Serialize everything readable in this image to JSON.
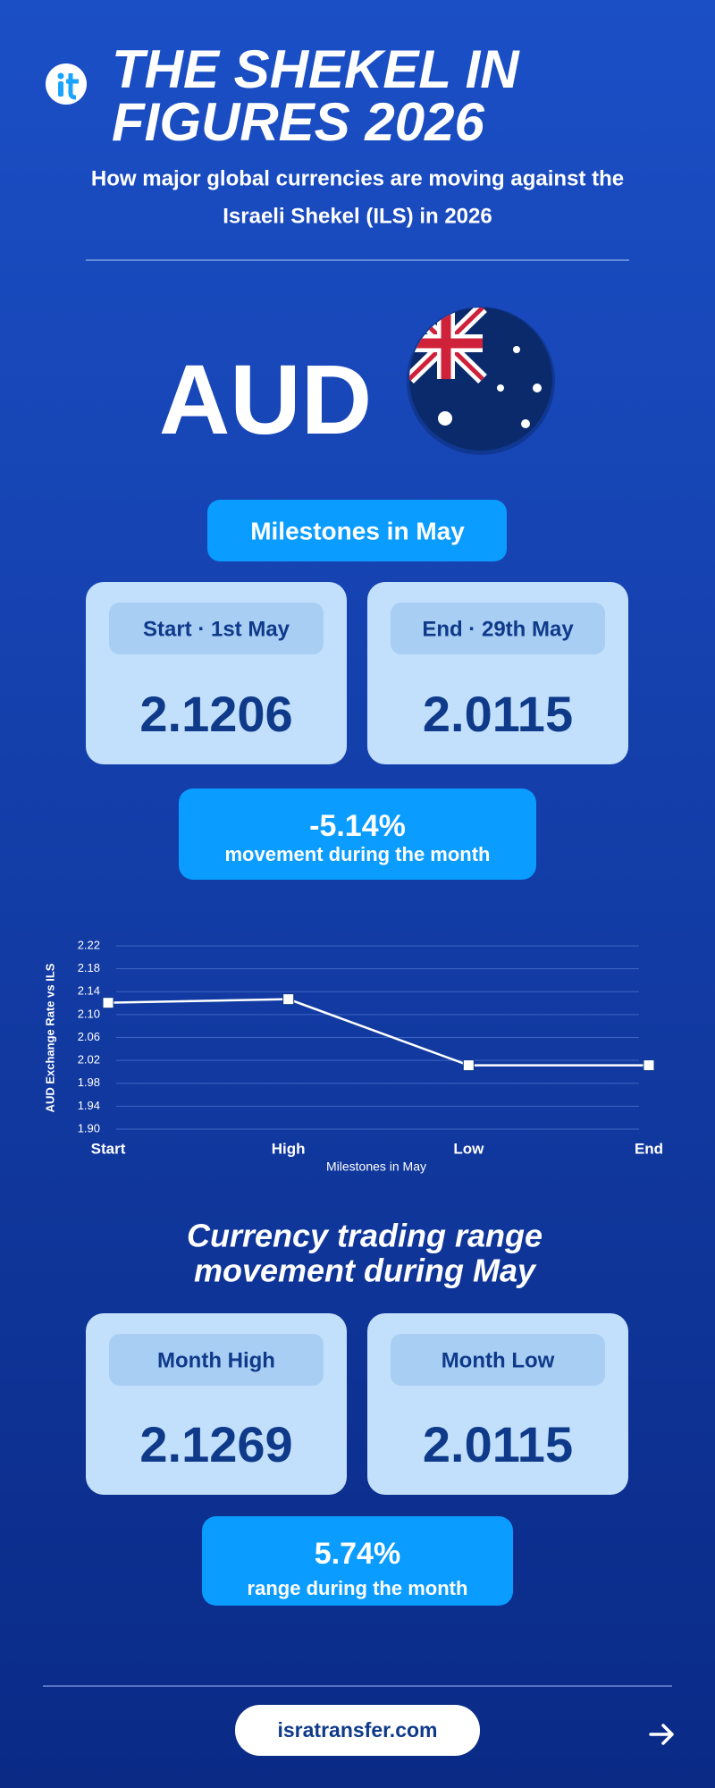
{
  "header": {
    "title_lines": [
      "THE SHEKEL IN",
      "FIGURES 2026"
    ],
    "subtitle_lines": [
      "How major global currencies are moving against the",
      "Israeli Shekel (ILS) in 2026"
    ]
  },
  "currency": "AUD",
  "milestones": {
    "heading": "Milestones in May",
    "cards": [
      {
        "label": "Start · 1st May",
        "value": "2.1206"
      },
      {
        "label": "End · 29th May",
        "value": "2.0115"
      }
    ],
    "movement": {
      "value": "-5.14%",
      "label": "movement during the month"
    }
  },
  "chart_data": {
    "type": "line",
    "categories": [
      "Start",
      "High",
      "Low",
      "End"
    ],
    "values": [
      2.1206,
      2.1269,
      2.0115,
      2.0115
    ],
    "color": "#ffffff",
    "ylim": [
      1.9,
      2.22
    ],
    "yticks": [
      {
        "value": 1.9,
        "label": "1.90"
      },
      1.94,
      1.98,
      2.02,
      2.06,
      {
        "value": 2.1,
        "label": "2.10"
      },
      2.14,
      2.18,
      2.22
    ],
    "y_label": "AUD Exchange Rate vs ILS",
    "x_label": "Milestones in May",
    "grid": true
  },
  "range": {
    "heading_lines": [
      "Currency trading range",
      "movement during May"
    ],
    "cards": [
      {
        "label": "Month High",
        "value": "2.1269"
      },
      {
        "label": "Month Low",
        "value": "2.0115"
      }
    ],
    "summary": {
      "value": "5.74%",
      "label": "range during the month"
    }
  },
  "footer": {
    "link": "isratransfer.com"
  }
}
